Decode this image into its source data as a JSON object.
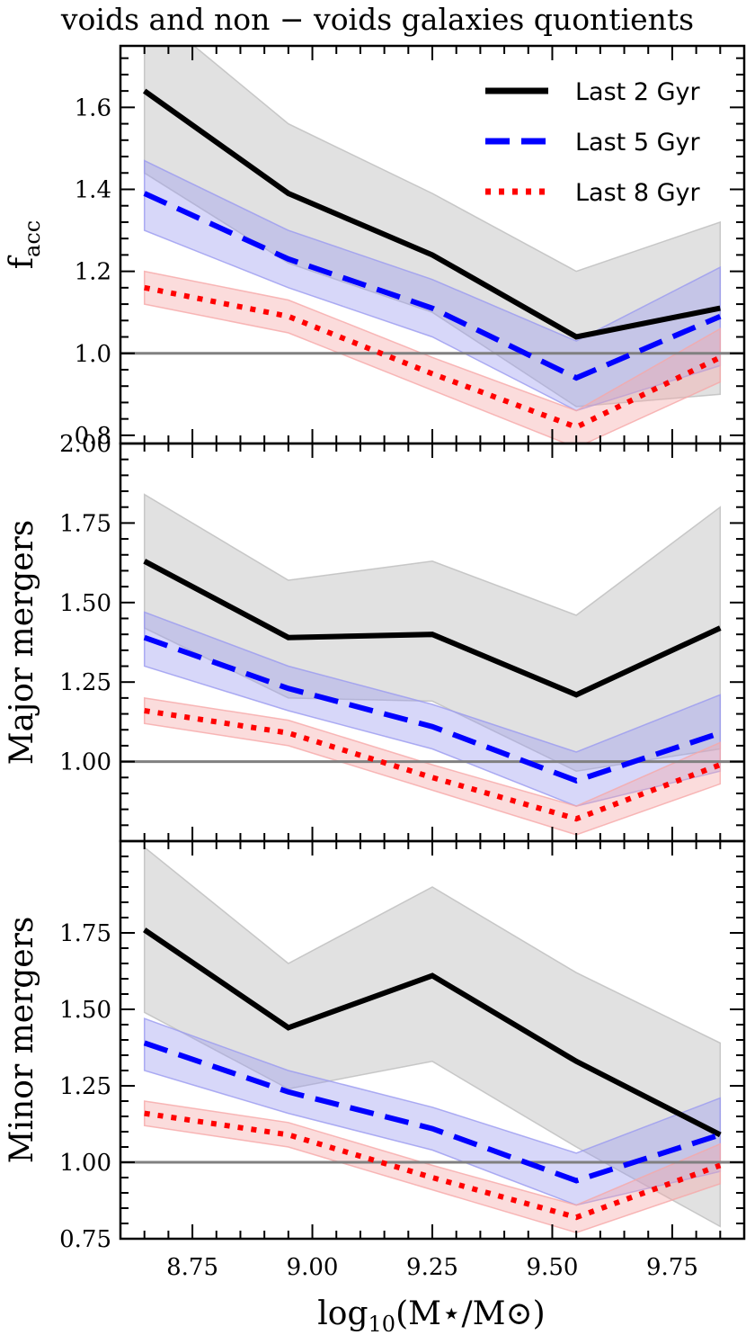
{
  "title": "voids and non − voids galaxies quontients",
  "xlabel": "log10(M⋆/M⊙)",
  "colors": {
    "last2": "#000000",
    "last5": "#0000ff",
    "last8": "#ff0000",
    "band2": "#bdbdbd",
    "band5": "#9a9af0",
    "band8": "#f6a8a8",
    "reference": "#808080"
  },
  "chart_data": [
    {
      "type": "line",
      "ylabel": "f_acc",
      "xlim": [
        8.6,
        9.9
      ],
      "ylim": [
        0.78,
        1.75
      ],
      "xticks": [
        8.75,
        9.0,
        9.25,
        9.5,
        9.75
      ],
      "xtick_labels": [
        "8.75",
        "9.00",
        "9.25",
        "9.50",
        "9.75"
      ],
      "yticks": [
        0.8,
        1.0,
        1.2,
        1.4,
        1.6
      ],
      "ytick_labels": [
        "0.8",
        "1.0",
        "1.2",
        "1.4",
        "1.6"
      ],
      "reference_line": 1.0,
      "legend": "top-right",
      "x": [
        8.65,
        8.95,
        9.25,
        9.55,
        9.85
      ],
      "series": [
        {
          "name": "Last 2 Gyr",
          "style": "solid",
          "values": [
            1.64,
            1.39,
            1.24,
            1.04,
            1.11
          ],
          "lower": [
            1.44,
            1.22,
            1.1,
            0.87,
            0.9
          ],
          "upper": [
            1.85,
            1.56,
            1.39,
            1.2,
            1.32
          ]
        },
        {
          "name": "Last 5 Gyr",
          "style": "dashed",
          "values": [
            1.39,
            1.23,
            1.11,
            0.94,
            1.09
          ],
          "lower": [
            1.3,
            1.16,
            1.04,
            0.86,
            0.97
          ],
          "upper": [
            1.47,
            1.3,
            1.18,
            1.03,
            1.21
          ]
        },
        {
          "name": "Last 8 Gyr",
          "style": "dotted",
          "values": [
            1.16,
            1.09,
            0.95,
            0.82,
            0.99
          ],
          "lower": [
            1.12,
            1.05,
            0.91,
            0.77,
            0.93
          ],
          "upper": [
            1.2,
            1.13,
            0.99,
            0.86,
            1.06
          ]
        }
      ]
    },
    {
      "type": "line",
      "ylabel": "Major mergers",
      "xlim": [
        8.6,
        9.9
      ],
      "ylim": [
        0.75,
        2.0
      ],
      "xticks": [
        8.75,
        9.0,
        9.25,
        9.5,
        9.75
      ],
      "xtick_labels": [
        "8.75",
        "9.00",
        "9.25",
        "9.50",
        "9.75"
      ],
      "yticks": [
        1.0,
        1.25,
        1.5,
        1.75,
        2.0
      ],
      "ytick_labels": [
        "1.00",
        "1.25",
        "1.50",
        "1.75",
        "2.00"
      ],
      "reference_line": 1.0,
      "x": [
        8.65,
        8.95,
        9.25,
        9.55,
        9.85
      ],
      "series": [
        {
          "name": "Last 2 Gyr",
          "style": "solid",
          "values": [
            1.63,
            1.39,
            1.4,
            1.21,
            1.42
          ],
          "lower": [
            1.42,
            1.2,
            1.19,
            0.97,
            1.04
          ],
          "upper": [
            1.84,
            1.57,
            1.63,
            1.46,
            1.8
          ]
        },
        {
          "name": "Last 5 Gyr",
          "style": "dashed",
          "values": [
            1.39,
            1.23,
            1.11,
            0.94,
            1.09
          ],
          "lower": [
            1.3,
            1.16,
            1.04,
            0.86,
            0.97
          ],
          "upper": [
            1.47,
            1.3,
            1.18,
            1.03,
            1.21
          ]
        },
        {
          "name": "Last 8 Gyr",
          "style": "dotted",
          "values": [
            1.16,
            1.09,
            0.95,
            0.82,
            0.99
          ],
          "lower": [
            1.12,
            1.05,
            0.91,
            0.77,
            0.93
          ],
          "upper": [
            1.2,
            1.13,
            0.99,
            0.86,
            1.06
          ]
        }
      ]
    },
    {
      "type": "line",
      "ylabel": "Minor mergers",
      "xlim": [
        8.6,
        9.9
      ],
      "ylim": [
        0.75,
        2.05
      ],
      "xticks": [
        8.75,
        9.0,
        9.25,
        9.5,
        9.75
      ],
      "xtick_labels": [
        "8.75",
        "9.00",
        "9.25",
        "9.50",
        "9.75"
      ],
      "yticks": [
        0.75,
        1.0,
        1.25,
        1.5,
        1.75
      ],
      "ytick_labels": [
        "0.75",
        "1.00",
        "1.25",
        "1.50",
        "1.75"
      ],
      "reference_line": 1.0,
      "x": [
        8.65,
        8.95,
        9.25,
        9.55,
        9.85
      ],
      "series": [
        {
          "name": "Last 2 Gyr",
          "style": "solid",
          "values": [
            1.76,
            1.44,
            1.61,
            1.33,
            1.09
          ],
          "lower": [
            1.49,
            1.24,
            1.33,
            1.05,
            0.79
          ],
          "upper": [
            2.03,
            1.65,
            1.9,
            1.62,
            1.39
          ]
        },
        {
          "name": "Last 5 Gyr",
          "style": "dashed",
          "values": [
            1.39,
            1.23,
            1.11,
            0.94,
            1.09
          ],
          "lower": [
            1.3,
            1.16,
            1.04,
            0.86,
            0.97
          ],
          "upper": [
            1.47,
            1.3,
            1.18,
            1.03,
            1.21
          ]
        },
        {
          "name": "Last 8 Gyr",
          "style": "dotted",
          "values": [
            1.16,
            1.09,
            0.95,
            0.82,
            0.99
          ],
          "lower": [
            1.12,
            1.05,
            0.91,
            0.77,
            0.93
          ],
          "upper": [
            1.2,
            1.13,
            0.99,
            0.86,
            1.06
          ]
        }
      ]
    }
  ]
}
